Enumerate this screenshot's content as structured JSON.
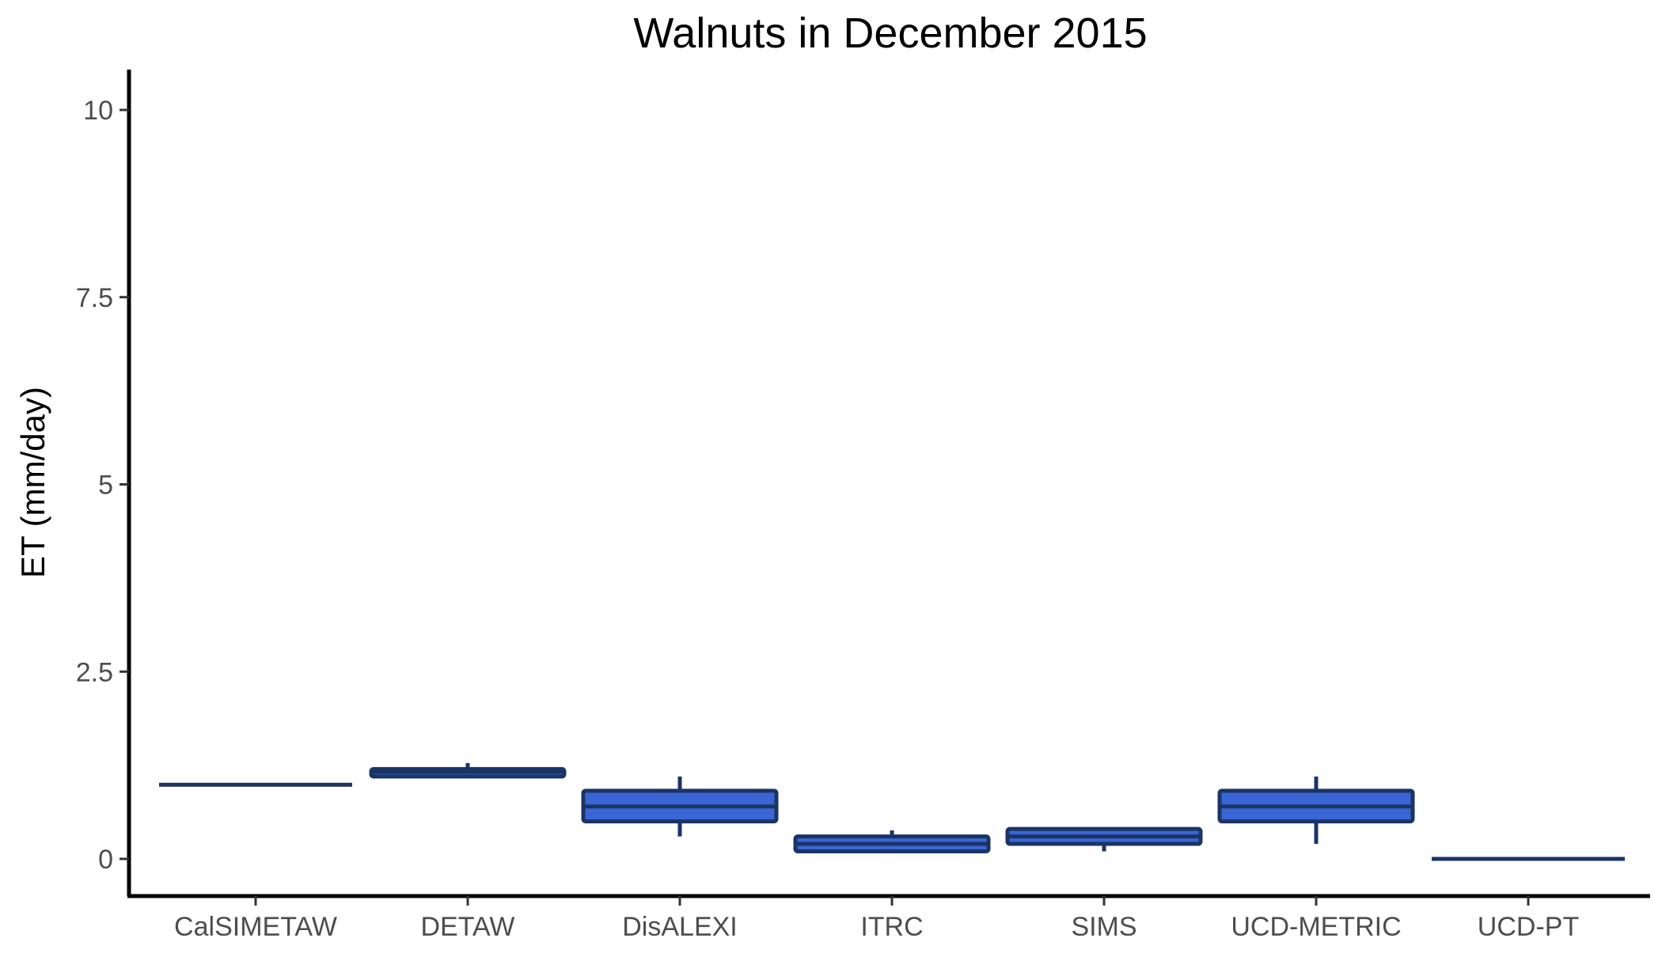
{
  "chart_data": {
    "type": "box",
    "title": "Walnuts in December 2015",
    "xlabel": "",
    "ylabel": "ET (mm/day)",
    "ylim": [
      -0.5,
      10.5
    ],
    "yticks": [
      0,
      2.5,
      5,
      7.5,
      10
    ],
    "ytick_labels": [
      "0",
      "2.5",
      "5",
      "7.5",
      "10"
    ],
    "grid": false,
    "legend": "none",
    "categories": [
      "CalSIMETAW",
      "DETAW",
      "DisALEXI",
      "ITRC",
      "SIMS",
      "UCD-METRIC",
      "UCD-PT"
    ],
    "boxes": [
      {
        "category": "CalSIMETAW",
        "min": 0.99,
        "q1": 0.99,
        "median": 0.99,
        "q3": 0.99,
        "max": 0.99
      },
      {
        "category": "DETAW",
        "min": 1.1,
        "q1": 1.1,
        "median": 1.16,
        "q3": 1.2,
        "max": 1.28
      },
      {
        "category": "DisALEXI",
        "min": 0.3,
        "q1": 0.5,
        "median": 0.7,
        "q3": 0.91,
        "max": 1.1
      },
      {
        "category": "ITRC",
        "min": 0.1,
        "q1": 0.1,
        "median": 0.2,
        "q3": 0.3,
        "max": 0.38
      },
      {
        "category": "SIMS",
        "min": 0.1,
        "q1": 0.2,
        "median": 0.3,
        "q3": 0.4,
        "max": 0.4
      },
      {
        "category": "UCD-METRIC",
        "min": 0.2,
        "q1": 0.5,
        "median": 0.7,
        "q3": 0.91,
        "max": 1.1
      },
      {
        "category": "UCD-PT",
        "min": 0.0,
        "q1": 0.0,
        "median": 0.0,
        "q3": 0.0,
        "max": 0.0
      }
    ],
    "colors": {
      "box_fill": "#3a66d4",
      "box_stroke": "#1b3466",
      "axis": "#000000"
    }
  }
}
